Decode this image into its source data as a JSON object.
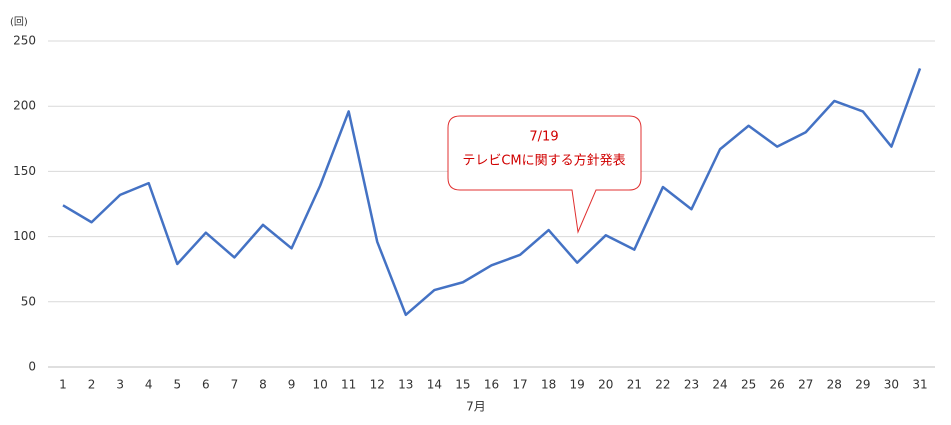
{
  "chart_data": {
    "type": "line",
    "y_unit": "(回)",
    "x_label": "7月",
    "categories": [
      "1",
      "2",
      "3",
      "4",
      "5",
      "6",
      "7",
      "8",
      "9",
      "10",
      "11",
      "12",
      "13",
      "14",
      "15",
      "16",
      "17",
      "18",
      "19",
      "20",
      "21",
      "22",
      "23",
      "24",
      "25",
      "26",
      "27",
      "28",
      "29",
      "30",
      "31"
    ],
    "series": [
      {
        "color": "#4472c4",
        "values": [
          124,
          111,
          132,
          141,
          79,
          103,
          84,
          109,
          91,
          139,
          196,
          96,
          40,
          59,
          65,
          78,
          86,
          105,
          80,
          101,
          90,
          138,
          121,
          167,
          185,
          169,
          180,
          204,
          196,
          169,
          229
        ]
      }
    ],
    "ylim": [
      0,
      250
    ],
    "yticks": [
      0,
      50,
      100,
      150,
      200,
      250
    ],
    "grid": true,
    "annotation": {
      "date": "7/19",
      "text": "テレビCMに関する方針発表"
    }
  }
}
